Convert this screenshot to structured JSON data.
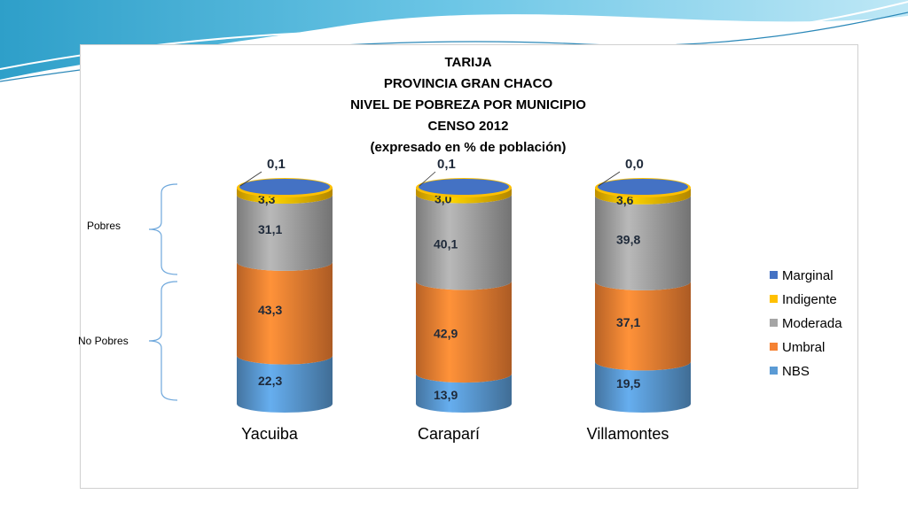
{
  "chart_data": {
    "type": "bar",
    "title_lines": [
      "TARIJA",
      "PROVINCIA GRAN CHACO",
      "NIVEL DE POBREZA POR MUNICIPIO",
      "CENSO 2012",
      "(expresado en % de población)"
    ],
    "categories": [
      "Yacuiba",
      "Caraparí",
      "Villamontes"
    ],
    "series": [
      {
        "name": "NBS",
        "color": "#5b9bd5",
        "values": [
          22.3,
          13.9,
          19.5
        ],
        "labels": [
          "22,3",
          "13,9",
          "19,5"
        ]
      },
      {
        "name": "Umbral",
        "color": "#f58233",
        "values": [
          43.3,
          42.9,
          37.1
        ],
        "labels": [
          "43,3",
          "42,9",
          "37,1"
        ]
      },
      {
        "name": "Moderada",
        "color": "#a5a5a5",
        "values": [
          31.1,
          40.1,
          39.8
        ],
        "labels": [
          "31,1",
          "40,1",
          "39,8"
        ]
      },
      {
        "name": "Indigente",
        "color": "#ffc000",
        "values": [
          3.3,
          3.0,
          3.6
        ],
        "labels": [
          "3,3",
          "3,0",
          "3,6"
        ]
      },
      {
        "name": "Marginal",
        "color": "#4472c4",
        "values": [
          0.1,
          0.1,
          0.0
        ],
        "labels": [
          "0,1",
          "0,1",
          "0,0"
        ]
      }
    ],
    "legend_order": [
      "Marginal",
      "Indigente",
      "Moderada",
      "Umbral",
      "NBS"
    ],
    "legend_position": "right",
    "group_labels": [
      "Pobres",
      "No Pobres"
    ],
    "ylim": [
      0,
      100
    ],
    "grid": false
  }
}
